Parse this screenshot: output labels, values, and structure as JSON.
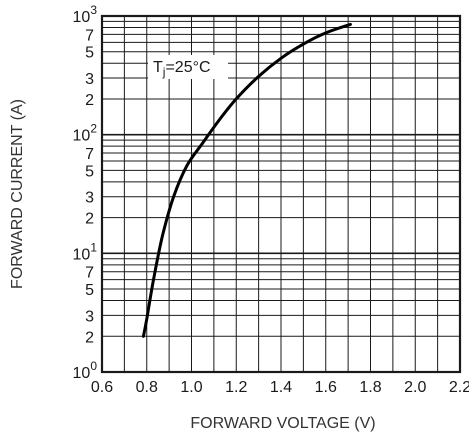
{
  "chart_data": {
    "type": "line",
    "xlabel": "FORWARD VOLTAGE (V)",
    "ylabel": "FORWARD CURRENT (A)",
    "xlim": [
      0.6,
      2.2
    ],
    "ylim": [
      1,
      1000
    ],
    "yscale": "log",
    "grid": true,
    "x_ticks": [
      "0.6",
      "0.8",
      "1.0",
      "1.2",
      "1.4",
      "1.6",
      "1.8",
      "2.0",
      "2.2"
    ],
    "y_ticks": [
      {
        "value": 1,
        "base": "10",
        "exp": "0"
      },
      {
        "value": 2,
        "label": "2"
      },
      {
        "value": 3,
        "label": "3"
      },
      {
        "value": 5,
        "label": "5"
      },
      {
        "value": 7,
        "label": "7"
      },
      {
        "value": 10,
        "base": "10",
        "exp": "1"
      },
      {
        "value": 20,
        "label": "2"
      },
      {
        "value": 30,
        "label": "3"
      },
      {
        "value": 50,
        "label": "5"
      },
      {
        "value": 70,
        "label": "7"
      },
      {
        "value": 100,
        "base": "10",
        "exp": "2"
      },
      {
        "value": 200,
        "label": "2"
      },
      {
        "value": 300,
        "label": "3"
      },
      {
        "value": 500,
        "label": "5"
      },
      {
        "value": 700,
        "label": "7"
      },
      {
        "value": 1000,
        "base": "10",
        "exp": "3"
      }
    ],
    "annotation": {
      "base": "T",
      "sub": "j",
      "rest": "=25°C"
    },
    "series": [
      {
        "x": [
          0.785,
          0.8,
          0.83,
          0.87,
          0.92,
          0.98,
          1.05,
          1.12,
          1.2,
          1.3,
          1.4,
          1.5,
          1.6,
          1.71
        ],
        "y": [
          2,
          2.8,
          6,
          14,
          30,
          55,
          85,
          130,
          200,
          310,
          440,
          580,
          720,
          850
        ]
      }
    ]
  }
}
